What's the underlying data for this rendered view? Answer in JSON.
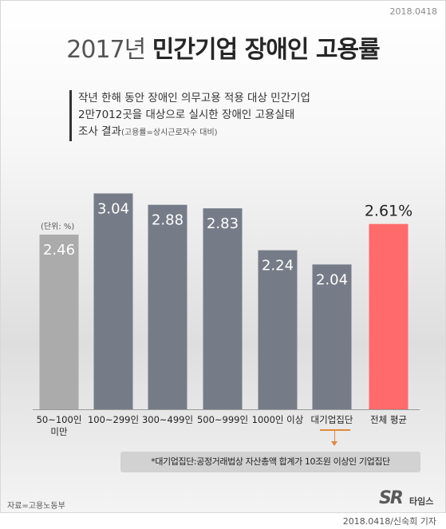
{
  "header": {
    "date": "2018.0418"
  },
  "title": {
    "year": "2017년",
    "text": "민간기업 장애인 고용률"
  },
  "subtitle": {
    "line1": "작년 한해 동안 장애인 의무고용 적용 대상 민간기업",
    "line2": "2만7012곳을 대상으로 실시한 장애인 고용실태",
    "line3": "조사 결과",
    "line3_small": "(고용률=상시근로자수 대비)"
  },
  "unit_label": "(단위: %)",
  "chart_data": {
    "type": "bar",
    "title": "2017년 민간기업 장애인 고용률",
    "unit": "%",
    "ylim": [
      0,
      3.5
    ],
    "categories": [
      "50~100인 미만",
      "100~299인",
      "300~499인",
      "500~999인",
      "1000인 이상",
      "대기업집단",
      "전체 평균"
    ],
    "category_lines": [
      [
        "50~100인",
        "미만"
      ],
      [
        "100~299인"
      ],
      [
        "300~499인"
      ],
      [
        "500~999인"
      ],
      [
        "1000인 이상"
      ],
      [
        "대기업집단"
      ],
      [
        "전체 평균"
      ]
    ],
    "values": [
      2.46,
      3.04,
      2.88,
      2.83,
      2.24,
      2.04,
      2.61
    ],
    "value_labels": [
      "2.46",
      "3.04",
      "2.88",
      "2.83",
      "2.24",
      "2.04",
      "2.61%"
    ],
    "colors": [
      "#ababab",
      "#767c87",
      "#767c87",
      "#767c87",
      "#767c87",
      "#767c87",
      "#ff6a6a"
    ],
    "grid": false,
    "legend": "none"
  },
  "note": "*대기업집단:공정거래법상 자산총액 합계가 10조원 이상인 기업집단",
  "source": "자료=고용노동부",
  "logo": {
    "mark": "SR",
    "text": "타임스"
  },
  "byline": "2018.0418/신숙희 기자"
}
